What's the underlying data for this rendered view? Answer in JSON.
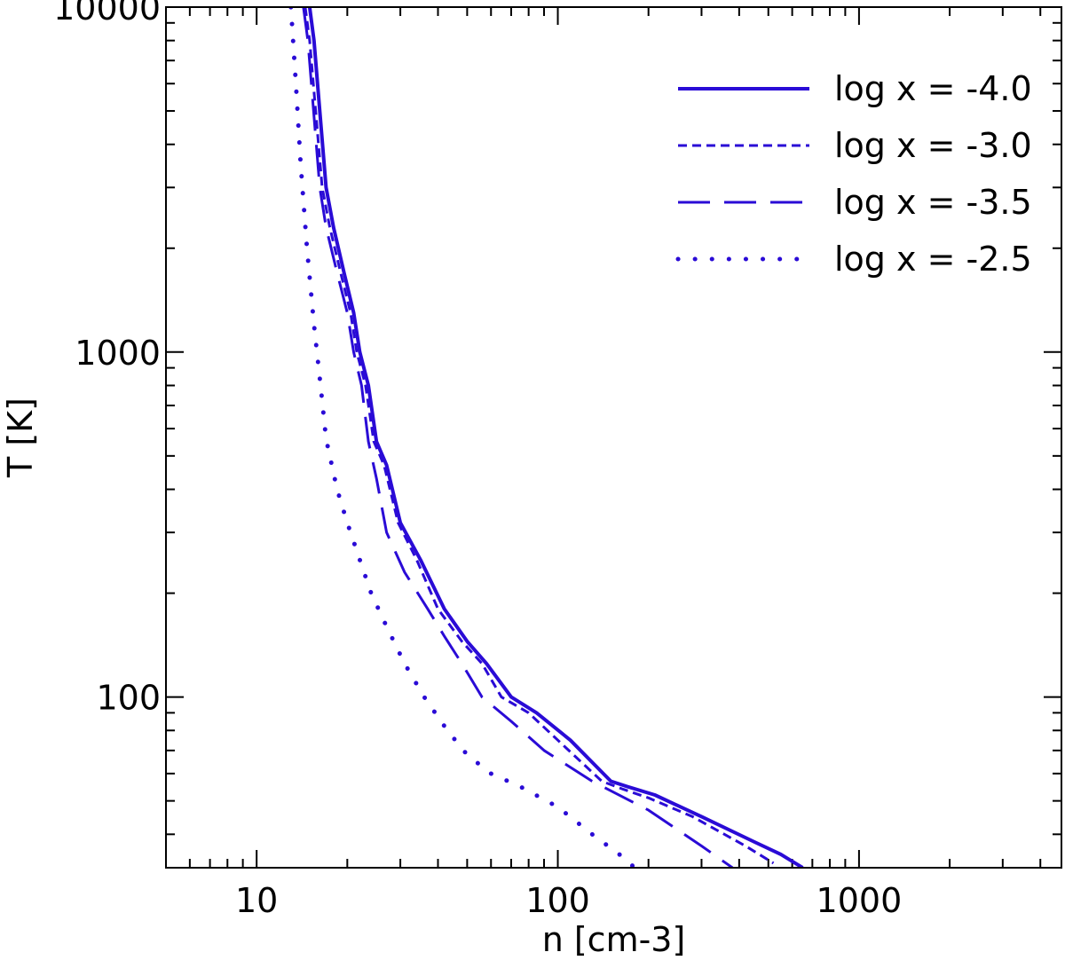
{
  "chart_data": {
    "type": "line",
    "xlabel": "n [cm-3]",
    "ylabel": "T [K]",
    "xscale": "log",
    "yscale": "log",
    "xlim": [
      5,
      4700
    ],
    "ylim": [
      32,
      10000
    ],
    "x_ticks": [
      {
        "value": 10,
        "label": "10"
      },
      {
        "value": 100,
        "label": "100"
      },
      {
        "value": 1000,
        "label": "1000"
      }
    ],
    "y_ticks": [
      {
        "value": 100,
        "label": "100"
      },
      {
        "value": 1000,
        "label": "1000"
      },
      {
        "value": 10000,
        "label": "10000"
      }
    ],
    "grid": false,
    "legend_position": "top-right",
    "line_color": "#2a0bd6",
    "series": [
      {
        "name": "log x = -4.0",
        "style": "solid",
        "points": [
          [
            15.0,
            10000
          ],
          [
            15.5,
            8000
          ],
          [
            17.0,
            3000
          ],
          [
            18.0,
            2300
          ],
          [
            19.5,
            1700
          ],
          [
            21.0,
            1300
          ],
          [
            22.0,
            1000
          ],
          [
            23.5,
            800
          ],
          [
            25.0,
            550
          ],
          [
            27.0,
            470
          ],
          [
            30.0,
            320
          ],
          [
            35.0,
            250
          ],
          [
            42.0,
            180
          ],
          [
            50.0,
            145
          ],
          [
            58.0,
            125
          ],
          [
            70.0,
            100
          ],
          [
            85.0,
            90
          ],
          [
            110.0,
            75
          ],
          [
            150.0,
            57
          ],
          [
            170.0,
            55
          ],
          [
            210.0,
            52
          ],
          [
            300.0,
            45
          ],
          [
            450.0,
            38
          ],
          [
            550.0,
            35
          ],
          [
            650.0,
            32
          ]
        ]
      },
      {
        "name": "log x = -3.0",
        "style": "short-dash",
        "points": [
          [
            14.5,
            10000
          ],
          [
            15.0,
            8000
          ],
          [
            16.5,
            3000
          ],
          [
            17.5,
            2300
          ],
          [
            19.0,
            1700
          ],
          [
            20.5,
            1300
          ],
          [
            21.5,
            1000
          ],
          [
            23.0,
            800
          ],
          [
            24.5,
            550
          ],
          [
            26.5,
            470
          ],
          [
            29.5,
            320
          ],
          [
            34.0,
            250
          ],
          [
            40.0,
            180
          ],
          [
            48.0,
            145
          ],
          [
            56.0,
            125
          ],
          [
            65.0,
            100
          ],
          [
            80.0,
            90
          ],
          [
            100.0,
            75
          ],
          [
            140.0,
            57
          ],
          [
            165.0,
            54
          ],
          [
            200.0,
            51
          ],
          [
            280.0,
            45
          ],
          [
            420.0,
            37
          ],
          [
            520.0,
            33
          ]
        ]
      },
      {
        "name": "log x = -3.5",
        "style": "long-dash",
        "points": [
          [
            14.3,
            10000
          ],
          [
            14.8,
            8000
          ],
          [
            16.2,
            3000
          ],
          [
            17.0,
            2300
          ],
          [
            18.5,
            1700
          ],
          [
            20.0,
            1300
          ],
          [
            21.0,
            1000
          ],
          [
            22.3,
            800
          ],
          [
            23.5,
            550
          ],
          [
            25.0,
            430
          ],
          [
            27.0,
            300
          ],
          [
            31.0,
            230
          ],
          [
            37.0,
            180
          ],
          [
            42.0,
            150
          ],
          [
            48.0,
            125
          ],
          [
            56.0,
            100
          ],
          [
            70.0,
            85
          ],
          [
            90.0,
            70
          ],
          [
            130.0,
            57
          ],
          [
            200.0,
            47
          ],
          [
            300.0,
            37
          ],
          [
            380.0,
            32
          ]
        ]
      },
      {
        "name": "log x = -2.5",
        "style": "dotted",
        "points": [
          [
            13.0,
            10000
          ],
          [
            13.5,
            6000
          ],
          [
            14.0,
            3500
          ],
          [
            14.7,
            2000
          ],
          [
            15.5,
            1200
          ],
          [
            16.3,
            800
          ],
          [
            17.0,
            560
          ],
          [
            18.5,
            400
          ],
          [
            20.0,
            320
          ],
          [
            22.0,
            250
          ],
          [
            24.0,
            200
          ],
          [
            27.0,
            160
          ],
          [
            31.0,
            125
          ],
          [
            36.0,
            100
          ],
          [
            43.0,
            80
          ],
          [
            50.0,
            68
          ],
          [
            60.0,
            60
          ],
          [
            75.0,
            55
          ],
          [
            100.0,
            48
          ],
          [
            130.0,
            40
          ],
          [
            160.0,
            35
          ],
          [
            180.0,
            32
          ]
        ]
      }
    ]
  }
}
